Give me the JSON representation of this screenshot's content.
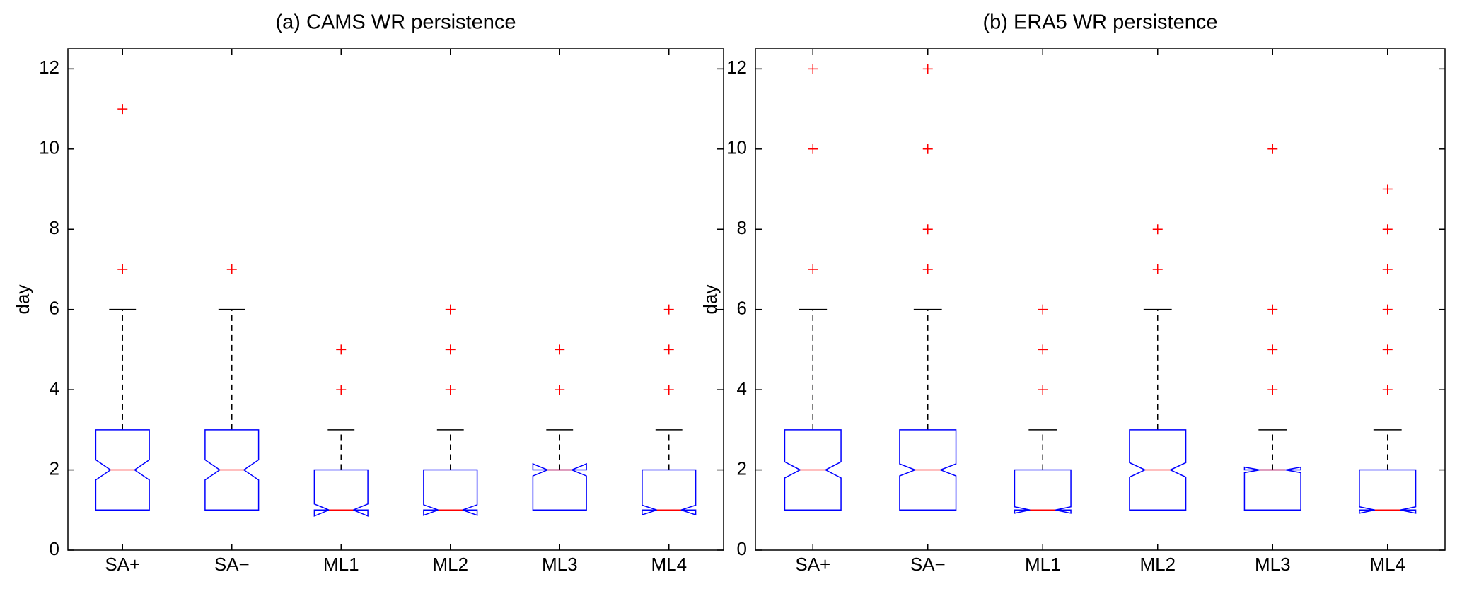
{
  "chart_data": [
    {
      "type": "box",
      "title": "(a) CAMS WR persistence",
      "ylabel": "day",
      "categories": [
        "SA+",
        "SA−",
        "ML1",
        "ML2",
        "ML3",
        "ML4"
      ],
      "ylim": [
        0,
        12.5
      ],
      "yticks": [
        0,
        2,
        4,
        6,
        8,
        10,
        12
      ],
      "box_color": "#0000ff",
      "median_color": "#ff0000",
      "whisker_color": "#000000",
      "outlier_color": "#ff0000",
      "boxes": [
        {
          "whisker_low": 1,
          "q1": 1,
          "median": 2,
          "q3": 3,
          "whisker_high": 6,
          "notch_low": 1.75,
          "notch_high": 2.25,
          "outliers": [
            7,
            11
          ]
        },
        {
          "whisker_low": 1,
          "q1": 1,
          "median": 2,
          "q3": 3,
          "whisker_high": 6,
          "notch_low": 1.75,
          "notch_high": 2.25,
          "outliers": [
            7
          ]
        },
        {
          "whisker_low": 1,
          "q1": 1,
          "median": 1,
          "q3": 2,
          "whisker_high": 3,
          "notch_low": 0.85,
          "notch_high": 1.15,
          "outliers": [
            4,
            5
          ]
        },
        {
          "whisker_low": 1,
          "q1": 1,
          "median": 1,
          "q3": 2,
          "whisker_high": 3,
          "notch_low": 0.87,
          "notch_high": 1.13,
          "outliers": [
            4,
            5,
            6
          ]
        },
        {
          "whisker_low": 1,
          "q1": 1,
          "median": 2,
          "q3": 2,
          "whisker_high": 3,
          "notch_low": 1.85,
          "notch_high": 2.15,
          "outliers": [
            4,
            5
          ]
        },
        {
          "whisker_low": 1,
          "q1": 1,
          "median": 1,
          "q3": 2,
          "whisker_high": 3,
          "notch_low": 0.88,
          "notch_high": 1.12,
          "outliers": [
            4,
            5,
            6
          ]
        }
      ]
    },
    {
      "type": "box",
      "title": "(b) ERA5 WR persistence",
      "ylabel": "day",
      "categories": [
        "SA+",
        "SA−",
        "ML1",
        "ML2",
        "ML3",
        "ML4"
      ],
      "ylim": [
        0,
        12.5
      ],
      "yticks": [
        0,
        2,
        4,
        6,
        8,
        10,
        12
      ],
      "box_color": "#0000ff",
      "median_color": "#ff0000",
      "whisker_color": "#000000",
      "outlier_color": "#ff0000",
      "boxes": [
        {
          "whisker_low": 1,
          "q1": 1,
          "median": 2,
          "q3": 3,
          "whisker_high": 6,
          "notch_low": 1.8,
          "notch_high": 2.2,
          "outliers": [
            7,
            10,
            12
          ]
        },
        {
          "whisker_low": 1,
          "q1": 1,
          "median": 2,
          "q3": 3,
          "whisker_high": 6,
          "notch_low": 1.85,
          "notch_high": 2.15,
          "outliers": [
            7,
            8,
            10,
            12
          ]
        },
        {
          "whisker_low": 1,
          "q1": 1,
          "median": 1,
          "q3": 2,
          "whisker_high": 3,
          "notch_low": 0.92,
          "notch_high": 1.08,
          "outliers": [
            4,
            5,
            6
          ]
        },
        {
          "whisker_low": 1,
          "q1": 1,
          "median": 2,
          "q3": 3,
          "whisker_high": 6,
          "notch_low": 1.82,
          "notch_high": 2.18,
          "outliers": [
            7,
            8
          ]
        },
        {
          "whisker_low": 1,
          "q1": 1,
          "median": 2,
          "q3": 2,
          "whisker_high": 3,
          "notch_low": 1.93,
          "notch_high": 2.07,
          "outliers": [
            4,
            5,
            6,
            10
          ]
        },
        {
          "whisker_low": 1,
          "q1": 1,
          "median": 1,
          "q3": 2,
          "whisker_high": 3,
          "notch_low": 0.92,
          "notch_high": 1.08,
          "outliers": [
            4,
            5,
            6,
            7,
            8,
            9
          ]
        }
      ]
    }
  ]
}
